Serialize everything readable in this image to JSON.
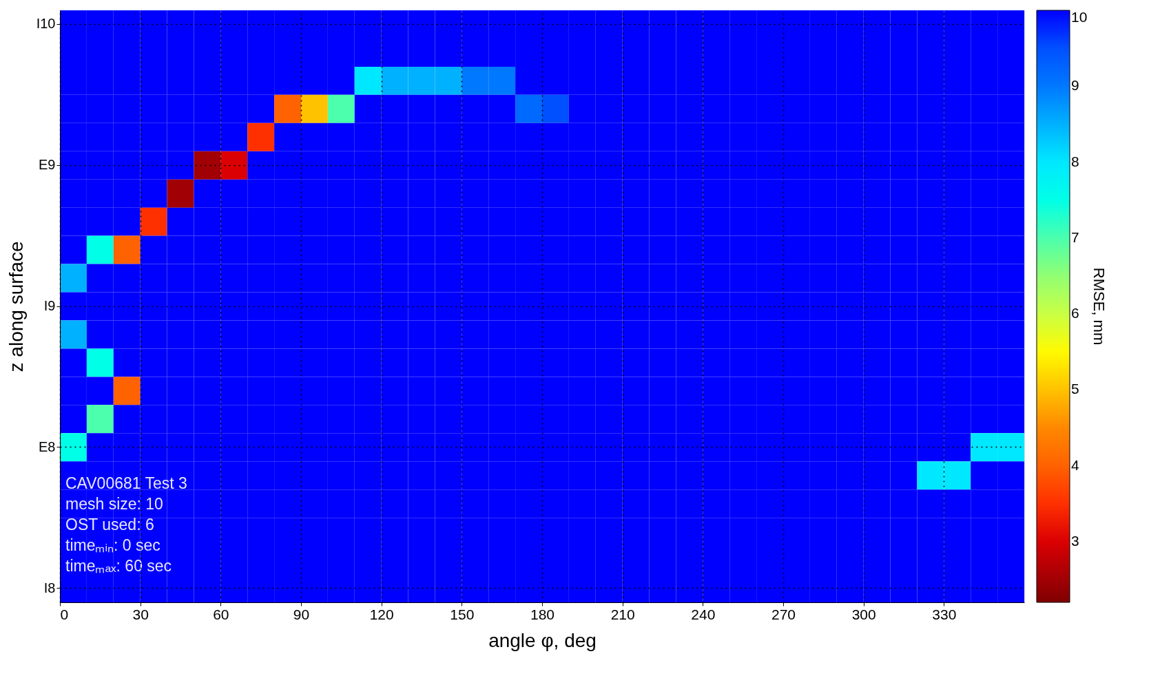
{
  "chart_data": {
    "type": "heatmap",
    "xlabel": "angle φ, deg",
    "ylabel": "z along surface",
    "clabel": "RMSE, mm",
    "annotations": [
      "CAV00681 Test 3",
      "mesh size: 10",
      "OST used: 6",
      "timeₘᵢₙ: 0 sec",
      "timeₘₐₓ: 60 sec"
    ],
    "x": [
      5,
      15,
      25,
      35,
      45,
      55,
      65,
      75,
      85,
      95,
      105,
      115,
      125,
      135,
      145,
      155,
      165,
      175,
      185,
      195,
      205,
      215,
      225,
      235,
      245,
      255,
      265,
      275,
      285,
      295,
      305,
      315,
      325,
      335,
      345,
      355
    ],
    "y_categories": [
      "I10",
      null,
      null,
      null,
      null,
      "E9",
      null,
      null,
      null,
      null,
      "I9",
      null,
      null,
      null,
      null,
      "E8",
      null,
      null,
      null,
      null,
      "I8"
    ],
    "cells": [
      [
        10,
        10,
        10,
        10,
        10,
        10,
        10,
        10,
        10,
        10,
        10,
        10,
        10,
        10,
        10,
        10,
        10,
        10,
        10,
        10,
        10,
        10,
        10,
        10,
        10,
        10,
        10,
        10,
        10,
        10,
        10,
        10,
        10,
        10,
        10,
        10
      ],
      [
        10,
        10,
        10,
        10,
        10,
        10,
        10,
        10,
        10,
        10,
        10,
        10,
        10,
        10,
        10,
        10,
        10,
        10,
        10,
        10,
        10,
        10,
        10,
        10,
        10,
        10,
        10,
        10,
        10,
        10,
        10,
        10,
        10,
        10,
        10,
        10
      ],
      [
        10,
        10,
        10,
        10,
        10,
        10,
        10,
        10,
        10,
        10,
        10,
        8,
        8.5,
        8.5,
        8.5,
        9,
        9,
        10,
        10,
        10,
        10,
        10,
        10,
        10,
        10,
        10,
        10,
        10,
        10,
        10,
        10,
        10,
        10,
        10,
        10,
        10
      ],
      [
        10,
        10,
        10,
        10,
        10,
        10,
        10,
        10,
        4,
        5,
        7,
        10,
        10,
        10,
        10,
        10,
        10,
        9.2,
        9.5,
        10,
        10,
        10,
        10,
        10,
        10,
        10,
        10,
        10,
        10,
        10,
        10,
        10,
        10,
        10,
        10,
        10
      ],
      [
        10,
        10,
        10,
        10,
        10,
        10,
        10,
        3.5,
        10,
        10,
        10,
        10,
        10,
        10,
        10,
        10,
        10,
        10,
        10,
        10,
        10,
        10,
        10,
        10,
        10,
        10,
        10,
        10,
        10,
        10,
        10,
        10,
        10,
        10,
        10,
        10
      ],
      [
        10,
        10,
        10,
        10,
        10,
        2.5,
        3,
        10,
        10,
        10,
        10,
        10,
        10,
        10,
        10,
        10,
        10,
        10,
        10,
        10,
        10,
        10,
        10,
        10,
        10,
        10,
        10,
        10,
        10,
        10,
        10,
        10,
        10,
        10,
        10,
        10
      ],
      [
        10,
        10,
        10,
        10,
        2.5,
        10,
        10,
        10,
        10,
        10,
        10,
        10,
        10,
        10,
        10,
        10,
        10,
        10,
        10,
        10,
        10,
        10,
        10,
        10,
        10,
        10,
        10,
        10,
        10,
        10,
        10,
        10,
        10,
        10,
        10,
        10
      ],
      [
        10,
        10,
        10,
        3.5,
        10,
        10,
        10,
        10,
        10,
        10,
        10,
        10,
        10,
        10,
        10,
        10,
        10,
        10,
        10,
        10,
        10,
        10,
        10,
        10,
        10,
        10,
        10,
        10,
        10,
        10,
        10,
        10,
        10,
        10,
        10,
        10
      ],
      [
        10,
        7.5,
        4,
        10,
        10,
        10,
        10,
        10,
        10,
        10,
        10,
        10,
        10,
        10,
        10,
        10,
        10,
        10,
        10,
        10,
        10,
        10,
        10,
        10,
        10,
        10,
        10,
        10,
        10,
        10,
        10,
        10,
        10,
        10,
        10,
        10
      ],
      [
        8.5,
        10,
        10,
        10,
        10,
        10,
        10,
        10,
        10,
        10,
        10,
        10,
        10,
        10,
        10,
        10,
        10,
        10,
        10,
        10,
        10,
        10,
        10,
        10,
        10,
        10,
        10,
        10,
        10,
        10,
        10,
        10,
        10,
        10,
        10,
        10
      ],
      [
        10,
        10,
        10,
        10,
        10,
        10,
        10,
        10,
        10,
        10,
        10,
        10,
        10,
        10,
        10,
        10,
        10,
        10,
        10,
        10,
        10,
        10,
        10,
        10,
        10,
        10,
        10,
        10,
        10,
        10,
        10,
        10,
        10,
        10,
        10,
        10
      ],
      [
        8.5,
        10,
        10,
        10,
        10,
        10,
        10,
        10,
        10,
        10,
        10,
        10,
        10,
        10,
        10,
        10,
        10,
        10,
        10,
        10,
        10,
        10,
        10,
        10,
        10,
        10,
        10,
        10,
        10,
        10,
        10,
        10,
        10,
        10,
        10,
        10
      ],
      [
        10,
        7.5,
        10,
        10,
        10,
        10,
        10,
        10,
        10,
        10,
        10,
        10,
        10,
        10,
        10,
        10,
        10,
        10,
        10,
        10,
        10,
        10,
        10,
        10,
        10,
        10,
        10,
        10,
        10,
        10,
        10,
        10,
        10,
        10,
        10,
        10
      ],
      [
        10,
        10,
        4,
        10,
        10,
        10,
        10,
        10,
        10,
        10,
        10,
        10,
        10,
        10,
        10,
        10,
        10,
        10,
        10,
        10,
        10,
        10,
        10,
        10,
        10,
        10,
        10,
        10,
        10,
        10,
        10,
        10,
        10,
        10,
        10,
        10
      ],
      [
        10,
        7,
        10,
        10,
        10,
        10,
        10,
        10,
        10,
        10,
        10,
        10,
        10,
        10,
        10,
        10,
        10,
        10,
        10,
        10,
        10,
        10,
        10,
        10,
        10,
        10,
        10,
        10,
        10,
        10,
        10,
        10,
        10,
        10,
        10,
        10
      ],
      [
        7.5,
        10,
        10,
        10,
        10,
        10,
        10,
        10,
        10,
        10,
        10,
        10,
        10,
        10,
        10,
        10,
        10,
        10,
        10,
        10,
        10,
        10,
        10,
        10,
        10,
        10,
        10,
        10,
        10,
        10,
        10,
        10,
        10,
        10,
        8,
        8
      ],
      [
        10,
        10,
        10,
        10,
        10,
        10,
        10,
        10,
        10,
        10,
        10,
        10,
        10,
        10,
        10,
        10,
        10,
        10,
        10,
        10,
        10,
        10,
        10,
        10,
        10,
        10,
        10,
        10,
        10,
        10,
        10,
        10,
        8,
        8,
        10,
        10
      ],
      [
        10,
        10,
        10,
        10,
        10,
        10,
        10,
        10,
        10,
        10,
        10,
        10,
        10,
        10,
        10,
        10,
        10,
        10,
        10,
        10,
        10,
        10,
        10,
        10,
        10,
        10,
        10,
        10,
        10,
        10,
        10,
        10,
        10,
        10,
        10,
        10
      ],
      [
        10,
        10,
        10,
        10,
        10,
        10,
        10,
        10,
        10,
        10,
        10,
        10,
        10,
        10,
        10,
        10,
        10,
        10,
        10,
        10,
        10,
        10,
        10,
        10,
        10,
        10,
        10,
        10,
        10,
        10,
        10,
        10,
        10,
        10,
        10,
        10
      ],
      [
        10,
        10,
        10,
        10,
        10,
        10,
        10,
        10,
        10,
        10,
        10,
        10,
        10,
        10,
        10,
        10,
        10,
        10,
        10,
        10,
        10,
        10,
        10,
        10,
        10,
        10,
        10,
        10,
        10,
        10,
        10,
        10,
        10,
        10,
        10,
        10
      ],
      [
        10,
        10,
        10,
        10,
        10,
        10,
        10,
        10,
        10,
        10,
        10,
        10,
        10,
        10,
        10,
        10,
        10,
        10,
        10,
        10,
        10,
        10,
        10,
        10,
        10,
        10,
        10,
        10,
        10,
        10,
        10,
        10,
        10,
        10,
        10,
        10
      ]
    ],
    "xlim": [
      0,
      360
    ],
    "xticks": [
      0,
      30,
      60,
      90,
      120,
      150,
      180,
      210,
      240,
      270,
      300,
      330
    ],
    "clim": [
      2.2,
      10
    ],
    "cticks": [
      3,
      4,
      5,
      6,
      7,
      8,
      9,
      10
    ],
    "grid": true
  }
}
